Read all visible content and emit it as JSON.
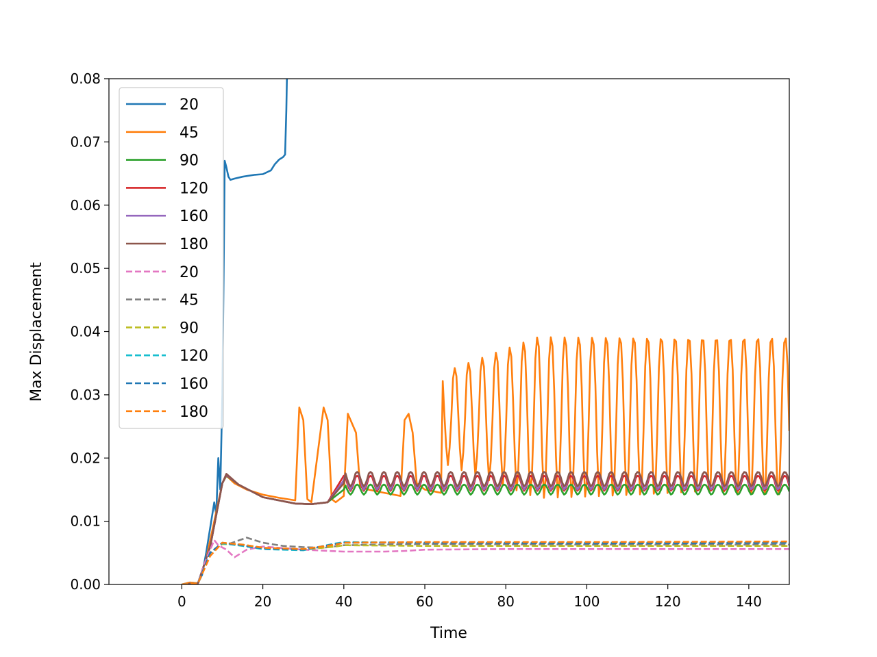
{
  "chart_data": {
    "type": "line",
    "title": "",
    "xlabel": "Time",
    "ylabel": "Max Displacement",
    "xlim": [
      -18,
      150
    ],
    "ylim": [
      0,
      0.08
    ],
    "xticks": [
      0,
      20,
      40,
      60,
      80,
      100,
      120,
      140
    ],
    "yticks": [
      0.0,
      0.01,
      0.02,
      0.03,
      0.04,
      0.05,
      0.06,
      0.07,
      0.08
    ],
    "xtick_labels": [
      "0",
      "20",
      "40",
      "60",
      "80",
      "100",
      "120",
      "140"
    ],
    "ytick_labels": [
      "0.00",
      "0.01",
      "0.02",
      "0.03",
      "0.04",
      "0.05",
      "0.06",
      "0.07",
      "0.08"
    ],
    "grid": false,
    "legend_position": "upper-left",
    "series": [
      {
        "name": "20",
        "color": "#1f77b4",
        "style": "solid",
        "x": [
          0,
          2,
          4,
          5,
          6,
          7,
          8,
          8.5,
          9,
          9.5,
          10,
          10.3,
          10.6,
          11,
          11.5,
          12,
          13,
          15,
          18,
          20,
          22,
          23,
          24,
          25,
          25.5,
          25.8,
          26
        ],
        "y": [
          0,
          0.0003,
          0.0002,
          0.0015,
          0.005,
          0.009,
          0.013,
          0.011,
          0.02,
          0.015,
          0.03,
          0.048,
          0.067,
          0.066,
          0.0645,
          0.064,
          0.0642,
          0.0645,
          0.0648,
          0.0649,
          0.0655,
          0.0665,
          0.0672,
          0.0676,
          0.068,
          0.075,
          0.082
        ]
      },
      {
        "name": "45",
        "color": "#ff7f0e",
        "style": "solid",
        "x": [
          0,
          2,
          4,
          6,
          8,
          10,
          11,
          13,
          16,
          20,
          24,
          28,
          29,
          30,
          31,
          32,
          35,
          36,
          37,
          38,
          40,
          41,
          43,
          44,
          46,
          50,
          54,
          55,
          56,
          57,
          58,
          60,
          64
        ],
        "y": [
          0,
          0.0003,
          0.0002,
          0.004,
          0.01,
          0.016,
          0.0172,
          0.016,
          0.015,
          0.0142,
          0.0137,
          0.0133,
          0.028,
          0.026,
          0.0135,
          0.013,
          0.028,
          0.026,
          0.0135,
          0.013,
          0.014,
          0.027,
          0.024,
          0.0155,
          0.015,
          0.0145,
          0.014,
          0.026,
          0.027,
          0.024,
          0.016,
          0.015,
          0.0145
        ],
        "osc": {
          "from": 64,
          "to": 150,
          "period": 3.4,
          "low": 0.0135,
          "high": 0.0392,
          "ramp_to": 88
        }
      },
      {
        "name": "90",
        "color": "#2ca02c",
        "style": "solid",
        "x": [
          0,
          4,
          7,
          10,
          11,
          14,
          20,
          28,
          32,
          36,
          40
        ],
        "y": [
          0,
          0.0002,
          0.006,
          0.016,
          0.0172,
          0.0158,
          0.0138,
          0.0128,
          0.0127,
          0.013,
          0.015
        ],
        "osc": {
          "from": 40,
          "to": 150,
          "period": 3.3,
          "low": 0.0142,
          "high": 0.0158,
          "ramp_to": 40
        }
      },
      {
        "name": "120",
        "color": "#d62728",
        "style": "solid",
        "x": [
          0,
          4,
          7,
          10,
          11,
          14,
          20,
          28,
          32,
          36,
          40
        ],
        "y": [
          0,
          0.0002,
          0.006,
          0.016,
          0.0173,
          0.0158,
          0.0138,
          0.0128,
          0.0127,
          0.013,
          0.0172
        ],
        "osc": {
          "from": 40,
          "to": 150,
          "period": 3.3,
          "low": 0.0148,
          "high": 0.0172,
          "ramp_to": 40
        }
      },
      {
        "name": "160",
        "color": "#9467bd",
        "style": "solid",
        "x": [
          0,
          4,
          7,
          10,
          11,
          14,
          20,
          28,
          32,
          36,
          40
        ],
        "y": [
          0,
          0.0002,
          0.006,
          0.016,
          0.0174,
          0.0158,
          0.0138,
          0.0128,
          0.0127,
          0.013,
          0.0165
        ],
        "osc": {
          "from": 40,
          "to": 150,
          "period": 3.3,
          "low": 0.015,
          "high": 0.0178,
          "ramp_to": 40
        }
      },
      {
        "name": "180",
        "color": "#8c564b",
        "style": "solid",
        "x": [
          0,
          4,
          7,
          10,
          11,
          14,
          20,
          28,
          32,
          36,
          40
        ],
        "y": [
          0,
          0.0002,
          0.006,
          0.016,
          0.0175,
          0.0158,
          0.0138,
          0.0128,
          0.0127,
          0.013,
          0.016
        ],
        "osc": {
          "from": 40,
          "to": 150,
          "period": 3.3,
          "low": 0.0155,
          "high": 0.0178,
          "ramp_to": 40
        }
      },
      {
        "name": "20",
        "color": "#e377c2",
        "style": "dashed",
        "x": [
          0,
          4,
          6,
          8,
          9,
          11,
          13,
          16,
          20,
          30,
          40,
          50,
          55,
          60,
          80,
          100,
          150
        ],
        "y": [
          0,
          0.0002,
          0.004,
          0.007,
          0.0062,
          0.0055,
          0.0043,
          0.0055,
          0.006,
          0.0055,
          0.0052,
          0.0052,
          0.0053,
          0.0055,
          0.0056,
          0.0056,
          0.0056
        ]
      },
      {
        "name": "45",
        "color": "#7f7f7f",
        "style": "dashed",
        "x": [
          0,
          4,
          7,
          10,
          12,
          16,
          20,
          25,
          30,
          35,
          40,
          60,
          100,
          150
        ],
        "y": [
          0,
          0.0002,
          0.005,
          0.0065,
          0.0065,
          0.0074,
          0.0066,
          0.0061,
          0.0059,
          0.0058,
          0.0062,
          0.0064,
          0.0063,
          0.0063
        ]
      },
      {
        "name": "90",
        "color": "#bcbd22",
        "style": "dashed",
        "x": [
          0,
          4,
          7,
          10,
          15,
          20,
          30,
          38,
          40,
          60,
          100,
          150
        ],
        "y": [
          0,
          0.0002,
          0.005,
          0.0064,
          0.0063,
          0.0058,
          0.0055,
          0.006,
          0.0062,
          0.0061,
          0.0061,
          0.0061
        ]
      },
      {
        "name": "120",
        "color": "#17becf",
        "style": "dashed",
        "x": [
          0,
          4,
          7,
          10,
          15,
          20,
          30,
          38,
          40,
          60,
          100,
          150
        ],
        "y": [
          0,
          0.0002,
          0.005,
          0.0065,
          0.0061,
          0.0056,
          0.0054,
          0.0065,
          0.0067,
          0.0066,
          0.0066,
          0.0066
        ]
      },
      {
        "name": "160",
        "color": "#1f77b4",
        "style": "dashed",
        "x": [
          0,
          4,
          7,
          10,
          15,
          20,
          30,
          38,
          40,
          60,
          100,
          150
        ],
        "y": [
          0,
          0.0002,
          0.005,
          0.0066,
          0.0062,
          0.0057,
          0.0055,
          0.0064,
          0.0066,
          0.0066,
          0.0065,
          0.0066
        ]
      },
      {
        "name": "180",
        "color": "#ff7f0e",
        "style": "dashed",
        "x": [
          0,
          4,
          7,
          10,
          15,
          20,
          30,
          38,
          40,
          60,
          100,
          150
        ],
        "y": [
          0,
          0.0002,
          0.0045,
          0.0066,
          0.0063,
          0.0058,
          0.0056,
          0.0063,
          0.0066,
          0.0067,
          0.0067,
          0.0068
        ]
      }
    ]
  }
}
